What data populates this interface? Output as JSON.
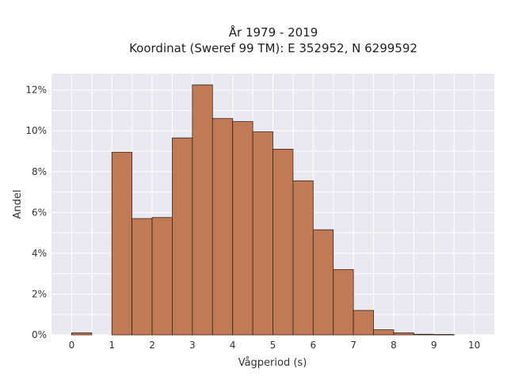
{
  "chart_data": {
    "type": "bar",
    "title": "År 1979 - 2019",
    "subtitle": "Koordinat (Sweref 99 TM): E 352952, N 6299592",
    "xlabel": "Vågperiod (s)",
    "ylabel": "Andel",
    "xlim": [
      -0.5,
      10.5
    ],
    "ylim": [
      0,
      12.8
    ],
    "x_ticks": [
      0,
      1,
      2,
      3,
      4,
      5,
      6,
      7,
      8,
      9,
      10
    ],
    "y_ticks": [
      0,
      2,
      4,
      6,
      8,
      10,
      12
    ],
    "y_tick_labels": [
      "0%",
      "2%",
      "4%",
      "6%",
      "8%",
      "10%",
      "12%"
    ],
    "bin_width": 0.5,
    "bins": [
      {
        "x0": 0.0,
        "value": 0.1
      },
      {
        "x0": 0.5,
        "value": 0.0
      },
      {
        "x0": 1.0,
        "value": 8.95
      },
      {
        "x0": 1.5,
        "value": 5.7
      },
      {
        "x0": 2.0,
        "value": 5.75
      },
      {
        "x0": 2.5,
        "value": 9.65
      },
      {
        "x0": 3.0,
        "value": 12.25
      },
      {
        "x0": 3.5,
        "value": 10.6
      },
      {
        "x0": 4.0,
        "value": 10.45
      },
      {
        "x0": 4.5,
        "value": 9.95
      },
      {
        "x0": 5.0,
        "value": 9.1
      },
      {
        "x0": 5.5,
        "value": 7.55
      },
      {
        "x0": 6.0,
        "value": 5.15
      },
      {
        "x0": 6.5,
        "value": 3.2
      },
      {
        "x0": 7.0,
        "value": 1.2
      },
      {
        "x0": 7.5,
        "value": 0.25
      },
      {
        "x0": 8.0,
        "value": 0.1
      },
      {
        "x0": 8.5,
        "value": 0.03
      },
      {
        "x0": 9.0,
        "value": 0.02
      },
      {
        "x0": 9.5,
        "value": 0.0
      }
    ],
    "grid": true,
    "legend": "none",
    "colors": {
      "bar_fill": "#c07a55",
      "bar_stroke": "#3a2417",
      "plot_background": "#e9e9f2",
      "grid": "#ffffff"
    }
  }
}
